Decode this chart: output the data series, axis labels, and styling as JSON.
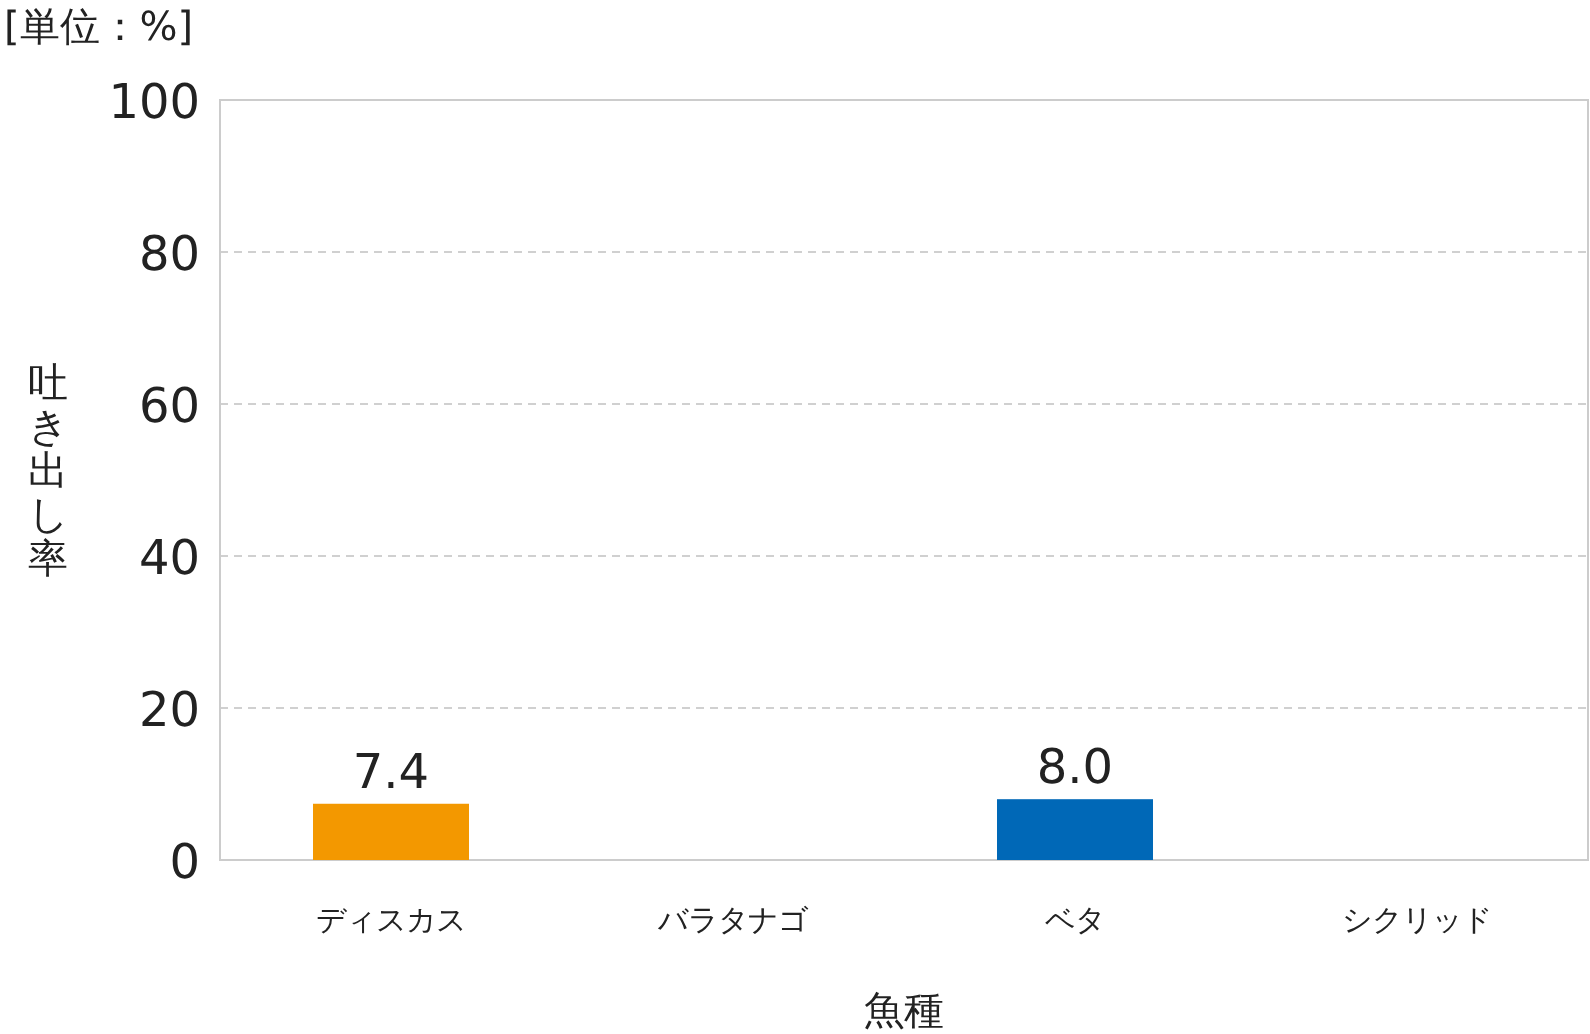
{
  "chart_data": {
    "type": "bar",
    "xlabel": "魚種",
    "ylabel": "吐き出し率",
    "annotations": [
      "[単位：%]"
    ],
    "categories": [
      "ディスカス",
      "バラタナゴ",
      "ベタ",
      "シクリッド"
    ],
    "values": [
      7.4,
      null,
      8.0,
      null
    ],
    "colors": [
      "#f39800",
      null,
      "#0068b7",
      null
    ],
    "value_labels": [
      "7.4",
      null,
      "8.0",
      null
    ],
    "ylim": [
      0,
      100
    ],
    "yticks": [
      0,
      20,
      40,
      60,
      80,
      100
    ],
    "grid": "y"
  }
}
